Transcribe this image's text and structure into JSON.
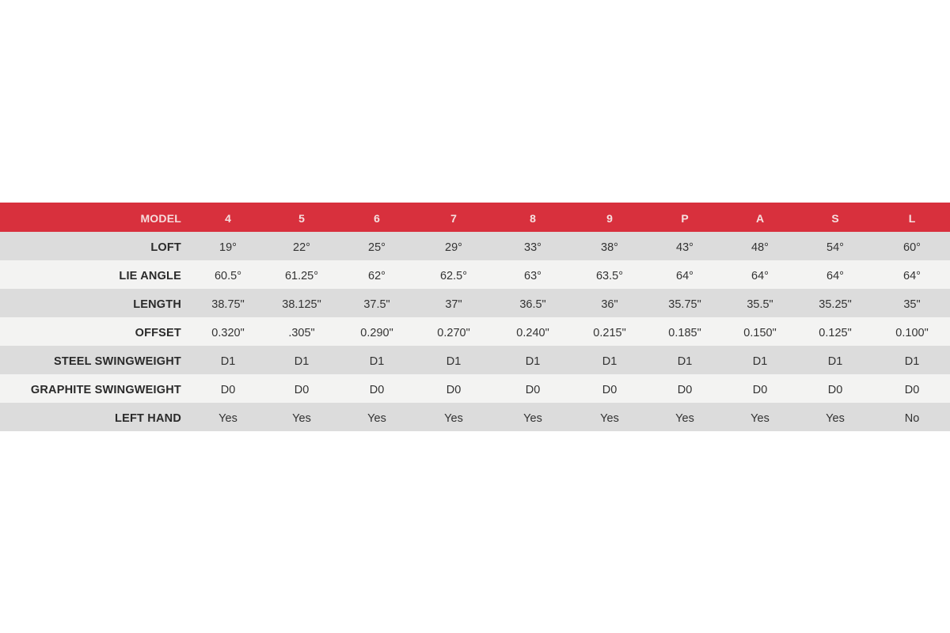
{
  "table": {
    "header": {
      "label": "MODEL",
      "values": [
        "4",
        "5",
        "6",
        "7",
        "8",
        "9",
        "P",
        "A",
        "S",
        "L"
      ]
    },
    "rows": [
      {
        "label": "LOFT",
        "values": [
          "19°",
          "22°",
          "25°",
          "29°",
          "33°",
          "38°",
          "43°",
          "48°",
          "54°",
          "60°"
        ]
      },
      {
        "label": "LIE ANGLE",
        "values": [
          "60.5°",
          "61.25°",
          "62°",
          "62.5°",
          "63°",
          "63.5°",
          "64°",
          "64°",
          "64°",
          "64°"
        ]
      },
      {
        "label": "LENGTH",
        "values": [
          "38.75\"",
          "38.125\"",
          "37.5\"",
          "37\"",
          "36.5\"",
          "36\"",
          "35.75\"",
          "35.5\"",
          "35.25\"",
          "35\""
        ]
      },
      {
        "label": "OFFSET",
        "values": [
          "0.320\"",
          ".305\"",
          "0.290\"",
          "0.270\"",
          "0.240\"",
          "0.215\"",
          "0.185\"",
          "0.150\"",
          "0.125\"",
          "0.100\""
        ]
      },
      {
        "label": "STEEL SWINGWEIGHT",
        "values": [
          "D1",
          "D1",
          "D1",
          "D1",
          "D1",
          "D1",
          "D1",
          "D1",
          "D1",
          "D1"
        ]
      },
      {
        "label": "GRAPHITE SWINGWEIGHT",
        "values": [
          "D0",
          "D0",
          "D0",
          "D0",
          "D0",
          "D0",
          "D0",
          "D0",
          "D0",
          "D0"
        ]
      },
      {
        "label": "LEFT HAND",
        "values": [
          "Yes",
          "Yes",
          "Yes",
          "Yes",
          "Yes",
          "Yes",
          "Yes",
          "Yes",
          "Yes",
          "No"
        ]
      }
    ]
  },
  "colors": {
    "header": "#d8303d",
    "row_dark": "#dcdcdc",
    "row_light": "#f3f3f2"
  }
}
